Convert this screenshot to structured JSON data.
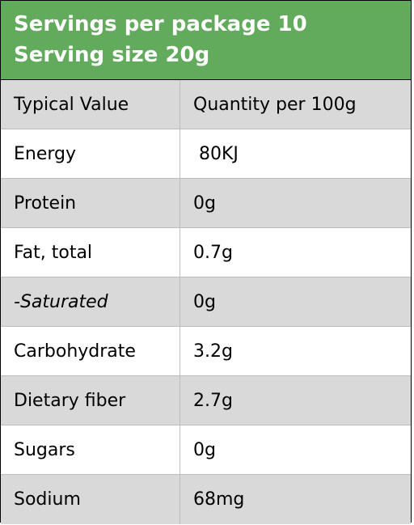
{
  "header": {
    "line1": "Servings per package 10",
    "line2": "Serving size 20g",
    "bg_color": "#62ab5c"
  },
  "table": {
    "columns": [
      "Typical Value",
      "Quantity per 100g"
    ],
    "rows": [
      {
        "name": "Energy",
        "qty": " 80KJ"
      },
      {
        "name": "Protein",
        "qty": "0g"
      },
      {
        "name": "Fat, total",
        "qty": "0.7g"
      },
      {
        "name": "-Saturated",
        "qty": "0g",
        "italic": true
      },
      {
        "name": "Carbohydrate",
        "qty": "3.2g"
      },
      {
        "name": "Dietary fiber",
        "qty": "2.7g"
      },
      {
        "name": "Sugars",
        "qty": "0g"
      },
      {
        "name": "Sodium",
        "qty": "68mg"
      }
    ],
    "shade_color": "#d9d9d9"
  }
}
